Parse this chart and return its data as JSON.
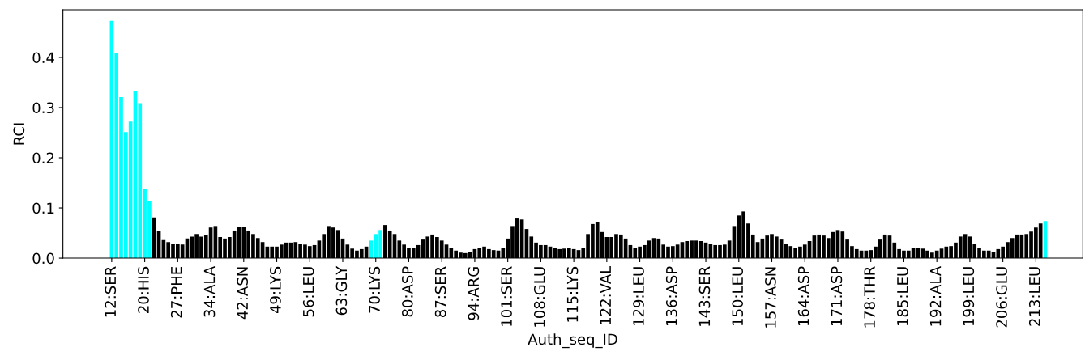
{
  "chart_data": {
    "type": "bar",
    "xlabel": "Auth_seq_ID",
    "ylabel": "RCI",
    "categories": [
      "12:SER",
      null,
      null,
      null,
      null,
      null,
      null,
      "20:HIS",
      null,
      null,
      null,
      null,
      null,
      null,
      "27:PHE",
      null,
      null,
      null,
      null,
      null,
      null,
      "34:ALA",
      null,
      null,
      null,
      null,
      null,
      null,
      "42:ASN",
      null,
      null,
      null,
      null,
      null,
      null,
      "49:LYS",
      null,
      null,
      null,
      null,
      null,
      null,
      "56:LEU",
      null,
      null,
      null,
      null,
      null,
      null,
      "63:GLY",
      null,
      null,
      null,
      null,
      null,
      null,
      "70:LYS",
      null,
      null,
      null,
      null,
      null,
      null,
      "80:ASP",
      null,
      null,
      null,
      null,
      null,
      null,
      "87:SER",
      null,
      null,
      null,
      null,
      null,
      null,
      "94:ARG",
      null,
      null,
      null,
      null,
      null,
      null,
      "101:SER",
      null,
      null,
      null,
      null,
      null,
      null,
      "108:GLU",
      null,
      null,
      null,
      null,
      null,
      null,
      "115:LYS",
      null,
      null,
      null,
      null,
      null,
      null,
      "122:VAL",
      null,
      null,
      null,
      null,
      null,
      null,
      "129:LEU",
      null,
      null,
      null,
      null,
      null,
      null,
      "136:ASP",
      null,
      null,
      null,
      null,
      null,
      null,
      "143:SER",
      null,
      null,
      null,
      null,
      null,
      null,
      "150:LEU",
      null,
      null,
      null,
      null,
      null,
      null,
      "157:ASN",
      null,
      null,
      null,
      null,
      null,
      null,
      "164:ASP",
      null,
      null,
      null,
      null,
      null,
      null,
      "171:ASP",
      null,
      null,
      null,
      null,
      null,
      null,
      "178:THR",
      null,
      null,
      null,
      null,
      null,
      null,
      "185:LEU",
      null,
      null,
      null,
      null,
      null,
      null,
      "192:ALA",
      null,
      null,
      null,
      null,
      null,
      null,
      "199:LEU",
      null,
      null,
      null,
      null,
      null,
      null,
      "206:GLU",
      null,
      null,
      null,
      null,
      null,
      null,
      "213:LEU",
      null,
      null
    ],
    "values": [
      0.473,
      0.409,
      0.321,
      0.251,
      0.272,
      0.334,
      0.309,
      0.137,
      0.113,
      0.081,
      0.055,
      0.036,
      0.032,
      0.029,
      0.029,
      0.027,
      0.039,
      0.043,
      0.048,
      0.043,
      0.047,
      0.061,
      0.064,
      0.042,
      0.039,
      0.042,
      0.055,
      0.063,
      0.063,
      0.055,
      0.048,
      0.04,
      0.032,
      0.023,
      0.023,
      0.023,
      0.027,
      0.031,
      0.031,
      0.032,
      0.029,
      0.027,
      0.024,
      0.026,
      0.035,
      0.048,
      0.064,
      0.061,
      0.056,
      0.039,
      0.027,
      0.019,
      0.015,
      0.018,
      0.023,
      0.035,
      0.048,
      0.056,
      0.066,
      0.055,
      0.048,
      0.035,
      0.027,
      0.021,
      0.021,
      0.026,
      0.037,
      0.043,
      0.047,
      0.042,
      0.035,
      0.027,
      0.021,
      0.015,
      0.011,
      0.01,
      0.013,
      0.018,
      0.021,
      0.023,
      0.018,
      0.016,
      0.015,
      0.021,
      0.039,
      0.064,
      0.079,
      0.077,
      0.058,
      0.043,
      0.031,
      0.026,
      0.026,
      0.023,
      0.021,
      0.018,
      0.019,
      0.021,
      0.018,
      0.016,
      0.021,
      0.048,
      0.068,
      0.072,
      0.052,
      0.042,
      0.042,
      0.048,
      0.047,
      0.039,
      0.026,
      0.021,
      0.023,
      0.026,
      0.035,
      0.04,
      0.039,
      0.027,
      0.023,
      0.024,
      0.027,
      0.032,
      0.034,
      0.035,
      0.035,
      0.034,
      0.031,
      0.029,
      0.026,
      0.026,
      0.027,
      0.035,
      0.064,
      0.085,
      0.093,
      0.069,
      0.047,
      0.032,
      0.039,
      0.045,
      0.048,
      0.043,
      0.037,
      0.029,
      0.024,
      0.021,
      0.023,
      0.027,
      0.034,
      0.045,
      0.047,
      0.045,
      0.04,
      0.052,
      0.056,
      0.053,
      0.037,
      0.024,
      0.018,
      0.015,
      0.015,
      0.016,
      0.023,
      0.037,
      0.047,
      0.045,
      0.031,
      0.018,
      0.015,
      0.015,
      0.021,
      0.021,
      0.019,
      0.015,
      0.011,
      0.015,
      0.019,
      0.023,
      0.024,
      0.031,
      0.043,
      0.048,
      0.043,
      0.029,
      0.021,
      0.015,
      0.015,
      0.013,
      0.018,
      0.023,
      0.032,
      0.04,
      0.047,
      0.047,
      0.048,
      0.053,
      0.061,
      0.069,
      0.074
    ],
    "colors": [
      "#00ffff",
      "#00ffff",
      "#00ffff",
      "#00ffff",
      "#00ffff",
      "#00ffff",
      "#00ffff",
      "#00ffff",
      "#00ffff",
      "#000000",
      "#000000",
      "#000000",
      "#000000",
      "#000000",
      "#000000",
      "#000000",
      "#000000",
      "#000000",
      "#000000",
      "#000000",
      "#000000",
      "#000000",
      "#000000",
      "#000000",
      "#000000",
      "#000000",
      "#000000",
      "#000000",
      "#000000",
      "#000000",
      "#000000",
      "#000000",
      "#000000",
      "#000000",
      "#000000",
      "#000000",
      "#000000",
      "#000000",
      "#000000",
      "#000000",
      "#000000",
      "#000000",
      "#000000",
      "#000000",
      "#000000",
      "#000000",
      "#000000",
      "#000000",
      "#000000",
      "#000000",
      "#000000",
      "#000000",
      "#000000",
      "#000000",
      "#000000",
      "#00ffff",
      "#00ffff",
      "#00ffff",
      "#000000",
      "#000000",
      "#000000",
      "#000000",
      "#000000",
      "#000000",
      "#000000",
      "#000000",
      "#000000",
      "#000000",
      "#000000",
      "#000000",
      "#000000",
      "#000000",
      "#000000",
      "#000000",
      "#000000",
      "#000000",
      "#000000",
      "#000000",
      "#000000",
      "#000000",
      "#000000",
      "#000000",
      "#000000",
      "#000000",
      "#000000",
      "#000000",
      "#000000",
      "#000000",
      "#000000",
      "#000000",
      "#000000",
      "#000000",
      "#000000",
      "#000000",
      "#000000",
      "#000000",
      "#000000",
      "#000000",
      "#000000",
      "#000000",
      "#000000",
      "#000000",
      "#000000",
      "#000000",
      "#000000",
      "#000000",
      "#000000",
      "#000000",
      "#000000",
      "#000000",
      "#000000",
      "#000000",
      "#000000",
      "#000000",
      "#000000",
      "#000000",
      "#000000",
      "#000000",
      "#000000",
      "#000000",
      "#000000",
      "#000000",
      "#000000",
      "#000000",
      "#000000",
      "#000000",
      "#000000",
      "#000000",
      "#000000",
      "#000000",
      "#000000",
      "#000000",
      "#000000",
      "#000000",
      "#000000",
      "#000000",
      "#000000",
      "#000000",
      "#000000",
      "#000000",
      "#000000",
      "#000000",
      "#000000",
      "#000000",
      "#000000",
      "#000000",
      "#000000",
      "#000000",
      "#000000",
      "#000000",
      "#000000",
      "#000000",
      "#000000",
      "#000000",
      "#000000",
      "#000000",
      "#000000",
      "#000000",
      "#000000",
      "#000000",
      "#000000",
      "#000000",
      "#000000",
      "#000000",
      "#000000",
      "#000000",
      "#000000",
      "#000000",
      "#000000",
      "#000000",
      "#000000",
      "#000000",
      "#000000",
      "#000000",
      "#000000",
      "#000000",
      "#000000",
      "#000000",
      "#000000",
      "#000000",
      "#000000",
      "#000000",
      "#000000",
      "#000000",
      "#000000",
      "#000000",
      "#000000",
      "#000000",
      "#000000",
      "#000000",
      "#000000",
      "#000000",
      "#000000",
      "#000000",
      "#000000",
      "#000000",
      "#000000",
      "#000000",
      "#00ffff"
    ],
    "ylim": [
      0,
      0.495
    ],
    "yticks": [
      {
        "value": 0,
        "label": "0.0"
      },
      0.1,
      0.2,
      0.3,
      0.4
    ],
    "grid": false,
    "legend": false
  }
}
